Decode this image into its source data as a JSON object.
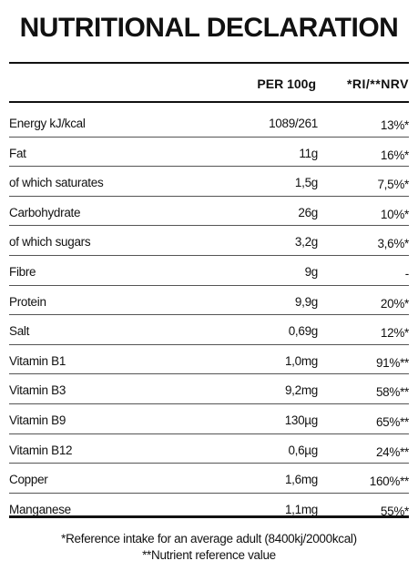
{
  "title": "NUTRITIONAL DECLARATION",
  "columns": {
    "per": "PER 100g",
    "ri": "*RI/**NRV"
  },
  "rows": [
    {
      "name": "Energy kJ/kcal",
      "per": "1089/261",
      "ri": "13%*"
    },
    {
      "name": "Fat",
      "per": "11g",
      "ri": "16%*"
    },
    {
      "name": "of which saturates",
      "per": "1,5g",
      "ri": "7,5%*"
    },
    {
      "name": "Carbohydrate",
      "per": "26g",
      "ri": "10%*"
    },
    {
      "name": "of which sugars",
      "per": "3,2g",
      "ri": "3,6%*"
    },
    {
      "name": "Fibre",
      "per": "9g",
      "ri": "-"
    },
    {
      "name": "Protein",
      "per": "9,9g",
      "ri": "20%*"
    },
    {
      "name": "Salt",
      "per": "0,69g",
      "ri": "12%*"
    },
    {
      "name": "Vitamin B1",
      "per": "1,0mg",
      "ri": "91%**"
    },
    {
      "name": "Vitamin B3",
      "per": "9,2mg",
      "ri": "58%**"
    },
    {
      "name": "Vitamin B9",
      "per": "130µg",
      "ri": "65%**"
    },
    {
      "name": "Vitamin B12",
      "per": "0,6µg",
      "ri": "24%**"
    },
    {
      "name": "Copper",
      "per": "1,6mg",
      "ri": "160%**"
    },
    {
      "name": "Manganese",
      "per": "1,1mg",
      "ri": "55%*"
    }
  ],
  "footnotes": {
    "ri": "*Reference intake for an average adult (8400kj/2000kcal)",
    "nrv": "**Nutrient reference value"
  }
}
